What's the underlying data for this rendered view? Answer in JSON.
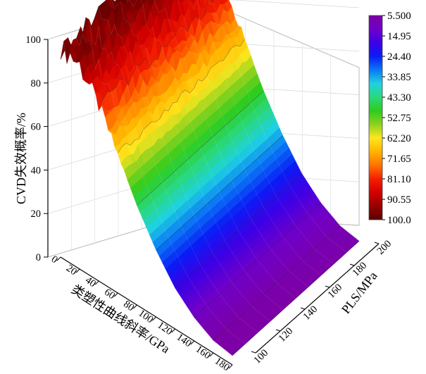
{
  "chart_data": {
    "type": "surface3d",
    "x_axis": {
      "label": "类塑性曲线斜率/GPa",
      "ticks": [
        "0",
        "20",
        "40",
        "60",
        "80",
        "100",
        "120",
        "140",
        "160",
        "180"
      ],
      "range": [
        0,
        180
      ]
    },
    "y_axis": {
      "label": "PLS/MPa",
      "ticks": [
        "100",
        "120",
        "140",
        "160",
        "180",
        "200"
      ],
      "range": [
        100,
        200
      ]
    },
    "z_axis": {
      "label": "CVD失效概率/%",
      "ticks": [
        "0",
        "20",
        "40",
        "60",
        "80",
        "100"
      ],
      "range": [
        0,
        100
      ]
    },
    "colorbar": {
      "labels": [
        "5.500",
        "14.95",
        "24.40",
        "33.85",
        "43.30",
        "52.75",
        "62.20",
        "71.65",
        "81.10",
        "90.55",
        "100.0"
      ],
      "range": [
        5.5,
        100.0
      ],
      "colors": [
        "#7d00a6",
        "#7000c8",
        "#3c00e6",
        "#0a1cf5",
        "#0a78f5",
        "#1ed2e1",
        "#2ad87c",
        "#2ecc1e",
        "#8cd21e",
        "#ffe61e",
        "#ffb400",
        "#ff7300",
        "#f51e00",
        "#d20000",
        "#960000",
        "#5a0000"
      ]
    },
    "surface_profile": {
      "x": [
        0,
        20,
        40,
        60,
        80,
        100,
        120,
        140,
        160,
        180
      ],
      "failure_probability_pct": [
        99,
        95,
        82,
        65,
        47,
        32,
        20,
        12,
        7,
        5.5
      ],
      "note_pls_dependence": "nearly constant along PLS"
    },
    "grid": true
  }
}
